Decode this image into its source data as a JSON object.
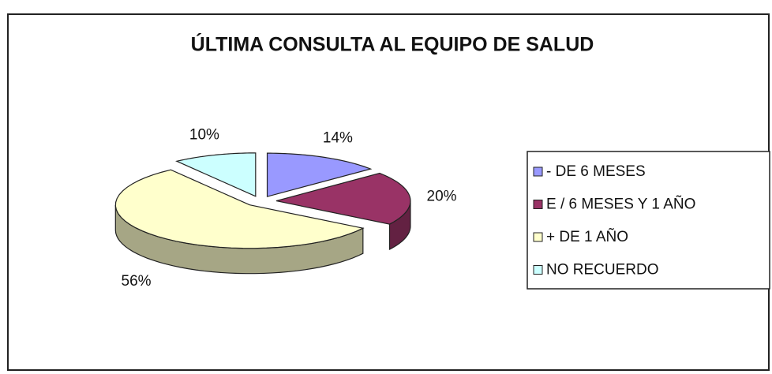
{
  "chart_data": {
    "type": "pie",
    "title": "ÚLTIMA CONSULTA AL EQUIPO DE SALUD",
    "categories": [
      "- DE 6 MESES",
      "E / 6 MESES Y 1 AÑO",
      "+ DE 1 AÑO",
      "NO RECUERDO"
    ],
    "values": [
      14,
      20,
      56,
      10
    ],
    "value_labels": [
      "14%",
      "20%",
      "56%",
      "10%"
    ],
    "colors": [
      "#9999ff",
      "#993366",
      "#ffffcc",
      "#ccffff"
    ],
    "legend": "right"
  }
}
